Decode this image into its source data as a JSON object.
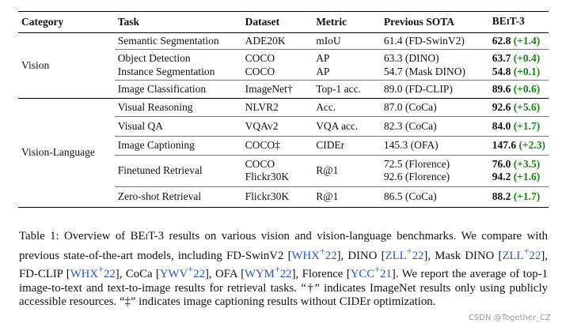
{
  "table": {
    "headers": {
      "category": "Category",
      "task": "Task",
      "dataset": "Dataset",
      "metric": "Metric",
      "previous_sota": "Previous SOTA",
      "beit3_prefix": "BE",
      "beit3_small": "I",
      "beit3_suffix": "T-3"
    },
    "groups": [
      {
        "category": "Vision",
        "rows": [
          {
            "task": "Semantic Segmentation",
            "dataset": "ADE20K",
            "metric": "mIoU",
            "prev": "61.4 (FD-SwinV2)",
            "score": "62.8",
            "gain": "(+1.4)"
          },
          {
            "task": "Object Detection",
            "dataset": "COCO",
            "metric": "AP",
            "prev": "63.3 (DINO)",
            "score": "63.7",
            "gain": "(+0.4)"
          },
          {
            "task": "Instance Segmentation",
            "dataset": "COCO",
            "metric": "AP",
            "prev": "54.7 (Mask DINO)",
            "score": "54.8",
            "gain": "(+0.1)"
          },
          {
            "task": "Image Classification",
            "dataset": "ImageNet†",
            "metric": "Top-1 acc.",
            "prev": "89.0 (FD-CLIP)",
            "score": "89.6",
            "gain": "(+0.6)"
          }
        ]
      },
      {
        "category": "Vision-Language",
        "rows": [
          {
            "task": "Visual Reasoning",
            "dataset": "NLVR2",
            "metric": "Acc.",
            "prev": "87.0 (CoCa)",
            "score": "92.6",
            "gain": "(+5.6)"
          },
          {
            "task": "Visual QA",
            "dataset": "VQAv2",
            "metric": "VQA acc.",
            "prev": "82.3 (CoCa)",
            "score": "84.0",
            "gain": "(+1.7)"
          },
          {
            "task": "Image Captioning",
            "dataset": "COCO‡",
            "metric": "CIDEr",
            "prev": "145.3 (OFA)",
            "score": "147.6",
            "gain": "(+2.3)"
          },
          {
            "task": "Finetuned Retrieval",
            "dataset": "COCO",
            "dataset2": "Flickr30K",
            "metric": "R@1",
            "prev": "72.5 (Florence)",
            "prev2": "92.6 (Florence)",
            "score": "76.0",
            "gain": "(+3.5)",
            "score2": "94.2",
            "gain2": "(+1.6)"
          },
          {
            "task": "Zero-shot Retrieval",
            "dataset": "Flickr30K",
            "metric": "R@1",
            "prev": "86.5 (CoCa)",
            "score": "88.2",
            "gain": "(+1.7)"
          }
        ]
      }
    ]
  },
  "caption": {
    "p1": "Table 1: Overview of BE",
    "p1_small": "I",
    "p2": "T-3 results on various vision and vision-language benchmarks. We compare with previous state-of-the-art models, including FD-SwinV2 [",
    "c1": "WHX",
    "c1s": "+",
    "c1n": "22",
    "p3": "], DINO [",
    "c2": "ZLL",
    "c2s": "+",
    "c2n": "22",
    "p4": "], Mask DINO [",
    "c3": "ZLL",
    "c3s": "+",
    "c3n": "22",
    "p5": "], FD-CLIP [",
    "c4": "WHX",
    "c4s": "+",
    "c4n": "22",
    "p6": "], CoCa [",
    "c5": "YWV",
    "c5s": "+",
    "c5n": "22",
    "p7": "], OFA [",
    "c6": "WYM",
    "c6s": "+",
    "c6n": "22",
    "p8": "], Florence [",
    "c7": "YCC",
    "c7s": "+",
    "c7n": "21",
    "p9": "]. We report the average of top-1 image-to-text and text-to-image results for retrieval tasks. “†” indicates ImageNet results only using publicly accessible resources. “‡” indicates image captioning results without CIDEr optimization."
  },
  "watermark": "CSDN @Together_CZ",
  "colors": {
    "gain": "#118811",
    "citation": "#2255cc"
  }
}
